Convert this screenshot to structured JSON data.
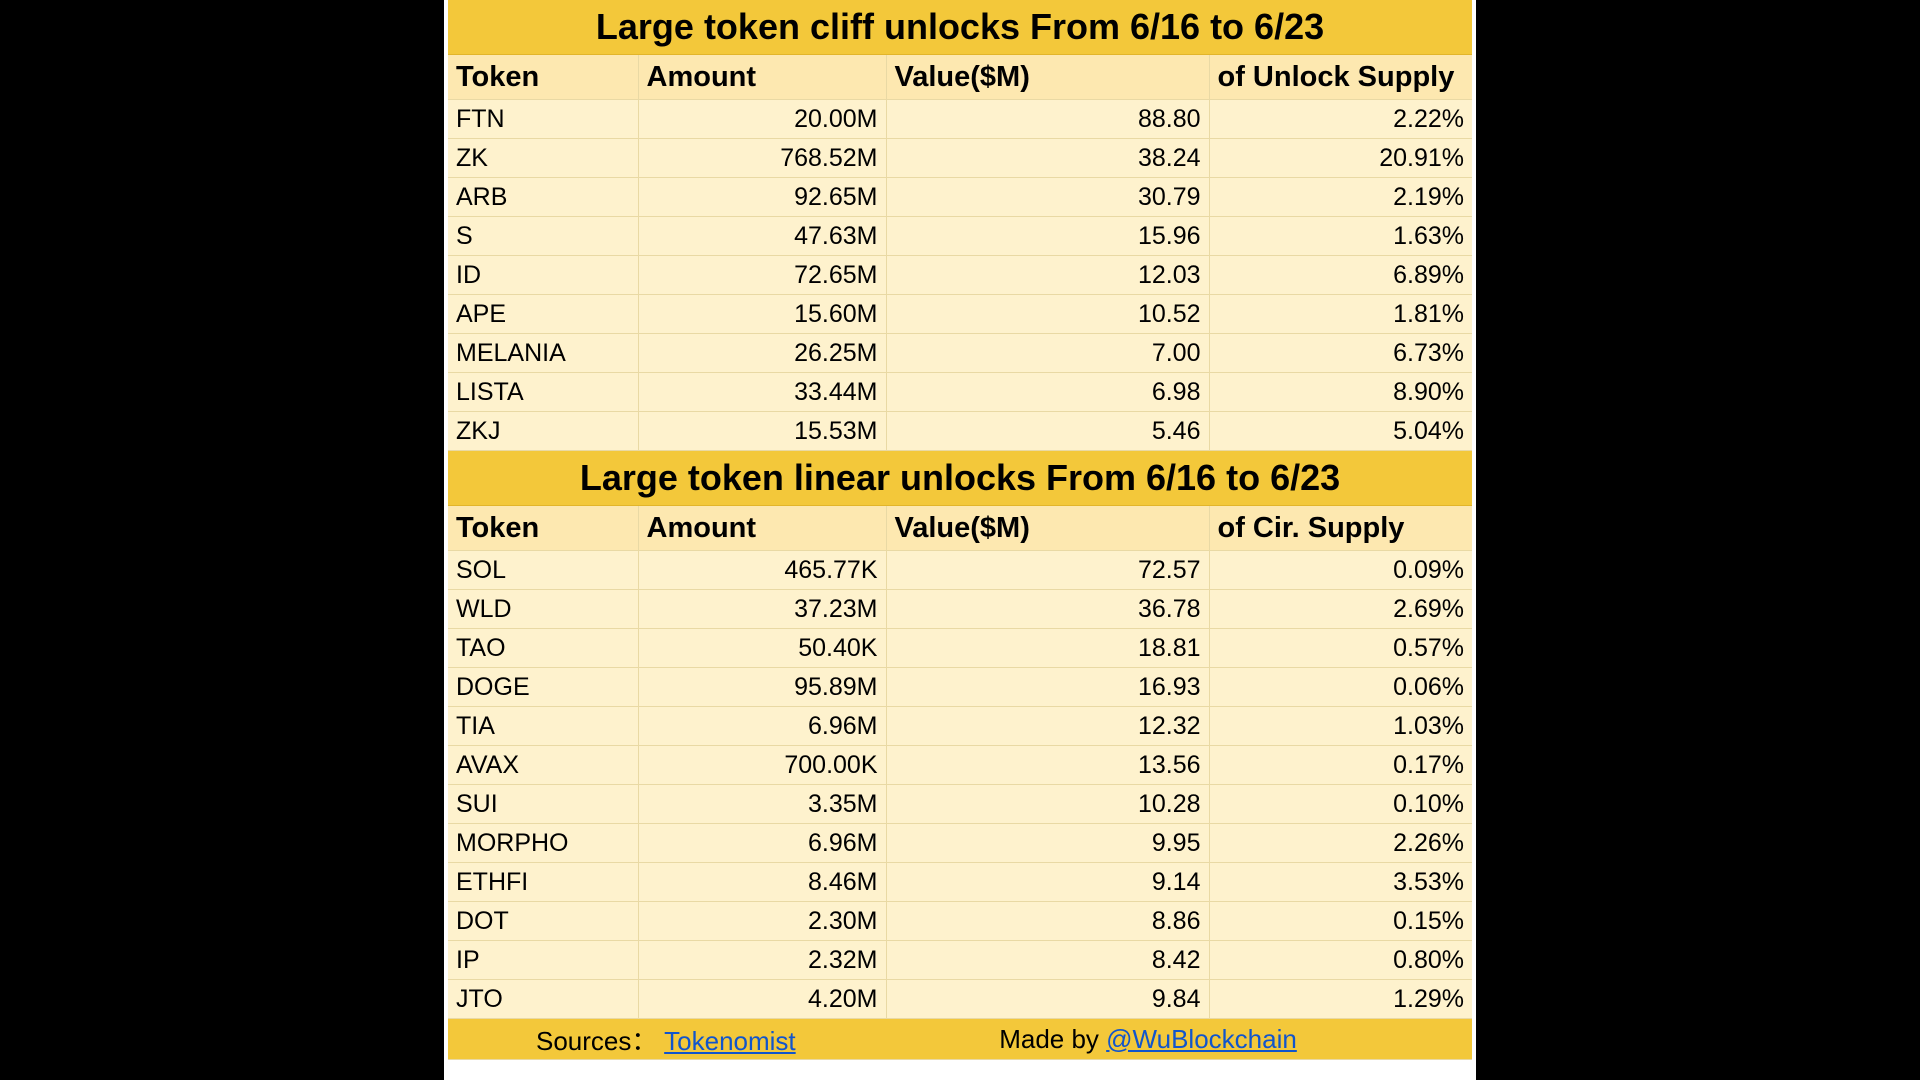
{
  "cliff": {
    "title": "Large token cliff unlocks From  6/16 to 6/23",
    "headers": [
      "Token",
      "Amount",
      "Value($M)",
      "of Unlock Supply"
    ],
    "rows": [
      [
        "FTN",
        "20.00M",
        "88.80",
        "2.22%"
      ],
      [
        "ZK",
        "768.52M",
        "38.24",
        "20.91%"
      ],
      [
        "ARB",
        "92.65M",
        "30.79",
        "2.19%"
      ],
      [
        "S",
        "47.63M",
        "15.96",
        "1.63%"
      ],
      [
        "ID",
        "72.65M",
        "12.03",
        "6.89%"
      ],
      [
        "APE",
        "15.60M",
        "10.52",
        "1.81%"
      ],
      [
        "MELANIA",
        "26.25M",
        "7.00",
        "6.73%"
      ],
      [
        "LISTA",
        "33.44M",
        "6.98",
        "8.90%"
      ],
      [
        "ZKJ",
        "15.53M",
        "5.46",
        "5.04%"
      ]
    ]
  },
  "linear": {
    "title": "Large token linear unlocks From    6/16 to 6/23",
    "headers": [
      "Token",
      "Amount",
      "Value($M)",
      "of Cir. Supply"
    ],
    "rows": [
      [
        "SOL",
        "465.77K",
        "72.57",
        "0.09%"
      ],
      [
        "WLD",
        "37.23M",
        "36.78",
        "2.69%"
      ],
      [
        "TAO",
        "50.40K",
        "18.81",
        "0.57%"
      ],
      [
        "DOGE",
        "95.89M",
        "16.93",
        "0.06%"
      ],
      [
        "TIA",
        "6.96M",
        "12.32",
        "1.03%"
      ],
      [
        "AVAX",
        "700.00K",
        "13.56",
        "0.17%"
      ],
      [
        "SUI",
        "3.35M",
        "10.28",
        "0.10%"
      ],
      [
        "MORPHO",
        "6.96M",
        "9.95",
        "2.26%"
      ],
      [
        "ETHFI",
        "8.46M",
        "9.14",
        "3.53%"
      ],
      [
        "DOT",
        "2.30M",
        "8.86",
        "0.15%"
      ],
      [
        "IP",
        "2.32M",
        "8.42",
        "0.80%"
      ],
      [
        "JTO",
        "4.20M",
        "9.84",
        "1.29%"
      ]
    ]
  },
  "footer": {
    "sources_label": "Sources：",
    "sources_link": "Tokenomist",
    "made_by_label": "Made by ",
    "made_by_link": "@WuBlockchain"
  },
  "colors": {
    "title_bg": "#f3c83a",
    "header_bg": "#fde8b0",
    "row_bg": "#fef2cd",
    "link": "#1155cc"
  }
}
